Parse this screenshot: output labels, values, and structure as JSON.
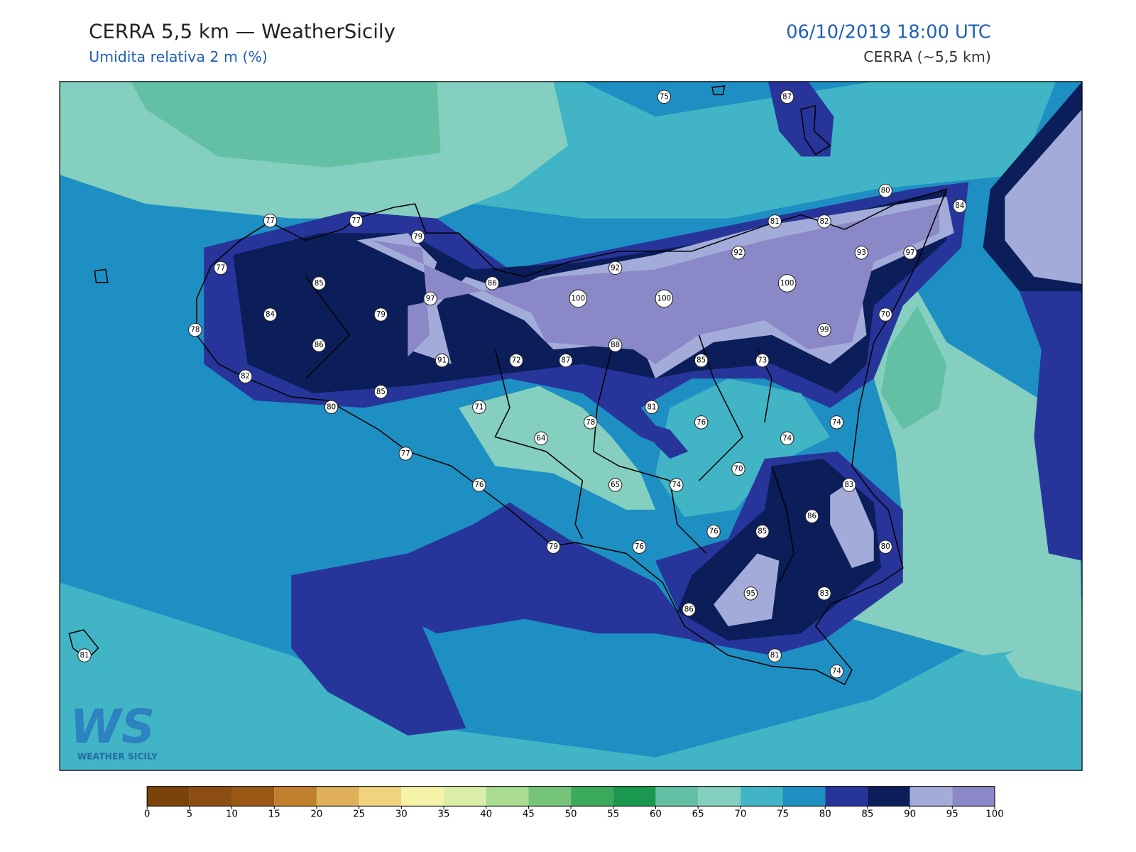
{
  "header": {
    "title": "CERRA 5,5 km — WeatherSicily",
    "subtitle": "Umidita relativa 2 m (%)",
    "datetime": "06/10/2019 18:00 UTC",
    "model": "CERRA (~5,5 km)"
  },
  "logo": {
    "mark": "WS",
    "text": "WEATHER SICILY"
  },
  "stations": [
    75,
    87,
    77,
    77,
    79,
    77,
    85,
    86,
    97,
    100,
    100,
    100,
    92,
    92,
    81,
    82,
    80,
    84,
    93,
    97,
    84,
    79,
    78,
    86,
    91,
    72,
    87,
    88,
    85,
    73,
    99,
    70,
    82,
    85,
    80,
    71,
    78,
    81,
    76,
    74,
    74,
    64,
    77,
    70,
    76,
    65,
    74,
    83,
    86,
    76,
    85,
    80,
    79,
    76,
    95,
    83,
    86,
    81,
    74,
    81
  ],
  "colorbar": {
    "ticks": [
      0,
      5,
      10,
      15,
      20,
      25,
      30,
      35,
      40,
      45,
      50,
      55,
      60,
      65,
      70,
      75,
      80,
      85,
      90,
      95,
      100
    ],
    "colors": [
      "#7a430a",
      "#8b4d12",
      "#9b5716",
      "#c07f2c",
      "#deb05a",
      "#f0d37c",
      "#f5f3a8",
      "#daeea8",
      "#a9dc8f",
      "#76c47a",
      "#3ba95c",
      "#1b9850",
      "#63c0a4",
      "#84cfc0",
      "#41b5c6",
      "#1e8fc2",
      "#27359a",
      "#0b1e5a",
      "#a3acd9",
      "#8b88c7"
    ]
  }
}
